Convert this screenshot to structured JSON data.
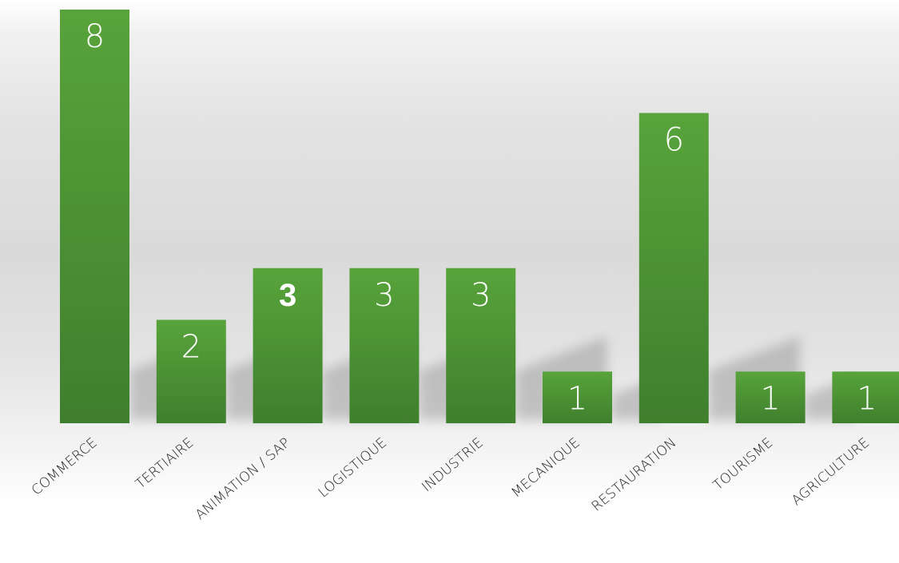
{
  "chart_data": {
    "type": "bar",
    "title": "",
    "xlabel": "",
    "ylabel": "",
    "ylim": [
      0,
      8
    ],
    "grid": false,
    "legend": "none",
    "categories": [
      "COMMERCE",
      "TERTIAIRE",
      "ANIMATION / SAP",
      "LOGISTIQUE",
      "INDUSTRIE",
      "MECANIQUE",
      "RESTAURATION",
      "TOURISME",
      "AGRICULTURE"
    ],
    "values": [
      8,
      2,
      3,
      3,
      3,
      1,
      6,
      1,
      1
    ],
    "value_labels": [
      "8",
      "2",
      "3",
      "3",
      "3",
      "1",
      "6",
      "1",
      "1"
    ],
    "highlighted_index": 2,
    "colors": {
      "bar_top": "#58a43b",
      "bar_bottom": "#3f7f2d",
      "value_text": "#ffffff",
      "label_text": "#222222",
      "background_center": "#dadada",
      "background_edge": "#ffffff"
    }
  }
}
